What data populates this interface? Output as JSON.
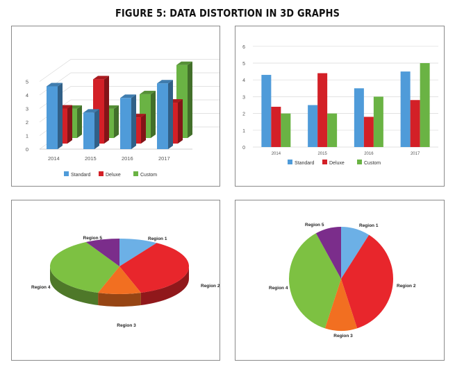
{
  "page": {
    "title": "FIGURE 5: DATA DISTORTION IN 3D GRAPHS"
  },
  "colors": {
    "standard": "#4f9bd9",
    "deluxe": "#d32027",
    "custom": "#6ab344",
    "region1": "#6cb0e6",
    "region2": "#e8262c",
    "region3": "#f26f21",
    "region4": "#7dc142",
    "region5": "#7b2d8b"
  },
  "chart_data": [
    {
      "type": "bar",
      "style": "3d",
      "categories": [
        "2014",
        "2015",
        "2016",
        "2017"
      ],
      "series": [
        {
          "name": "Standard",
          "values": [
            4.3,
            2.5,
            3.5,
            4.5
          ]
        },
        {
          "name": "Deluxe",
          "values": [
            2.4,
            4.4,
            1.8,
            2.8
          ]
        },
        {
          "name": "Custom",
          "values": [
            2.0,
            2.0,
            3.0,
            5.0
          ]
        }
      ],
      "yticks": [
        "0",
        "1",
        "2",
        "3",
        "4",
        "5"
      ],
      "ylim": [
        0,
        5
      ],
      "legend": "bottom"
    },
    {
      "type": "bar",
      "categories": [
        "2014",
        "2015",
        "2016",
        "2017"
      ],
      "series": [
        {
          "name": "Standard",
          "values": [
            4.3,
            2.5,
            3.5,
            4.5
          ]
        },
        {
          "name": "Deluxe",
          "values": [
            2.4,
            4.4,
            1.8,
            2.8
          ]
        },
        {
          "name": "Custom",
          "values": [
            2.0,
            2.0,
            3.0,
            5.0
          ]
        }
      ],
      "yticks": [
        "0",
        "1",
        "2",
        "3",
        "4",
        "5",
        "6"
      ],
      "ylim": [
        0,
        6
      ],
      "grid": true,
      "legend": "bottom"
    },
    {
      "type": "pie",
      "style": "3d",
      "labels": [
        "Region 1",
        "Region 2",
        "Region 3",
        "Region 4",
        "Region 5"
      ],
      "values": [
        9,
        36,
        10,
        37,
        8
      ]
    },
    {
      "type": "pie",
      "labels": [
        "Region 1",
        "Region 2",
        "Region 3",
        "Region 4",
        "Region 5"
      ],
      "values": [
        9,
        36,
        10,
        37,
        8
      ]
    }
  ]
}
